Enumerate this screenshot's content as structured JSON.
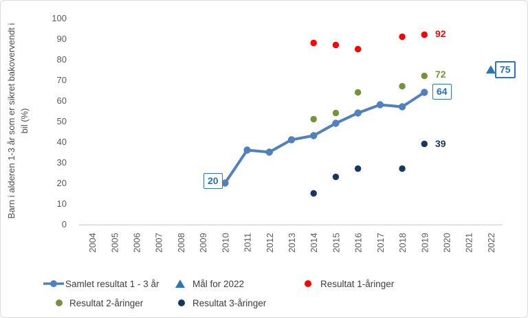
{
  "chart_data": {
    "type": "line",
    "title": "",
    "y_axis_title": "Barn i alderen 1-3 år som er sikret bakovervendt i bil (%)",
    "y_axis_title_lines": [
      "Barn i alderen 1-3 år som er sikret bakovervendt i",
      "bil (%)"
    ],
    "x_categories": [
      "2004",
      "2005",
      "2006",
      "2007",
      "2008",
      "2009",
      "2010",
      "2011",
      "2012",
      "2013",
      "2014",
      "2015",
      "2016",
      "2017",
      "2018",
      "2019",
      "2020",
      "2021",
      "2022"
    ],
    "y_ticks": [
      0,
      10,
      20,
      30,
      40,
      50,
      60,
      70,
      80,
      90,
      100
    ],
    "ylim": [
      0,
      100
    ],
    "grid": false,
    "legend_position": "bottom",
    "series": [
      {
        "name": "Samlet resultat 1 - 3 år",
        "type": "line",
        "color": "#4F81BD",
        "points": [
          [
            "2010",
            20
          ],
          [
            "2011",
            36
          ],
          [
            "2012",
            35
          ],
          [
            "2013",
            41
          ],
          [
            "2014",
            43
          ],
          [
            "2015",
            49
          ],
          [
            "2016",
            54
          ],
          [
            "2017",
            58
          ],
          [
            "2018",
            57
          ],
          [
            "2019",
            64
          ]
        ]
      },
      {
        "name": "Mål for 2022",
        "type": "triangle",
        "color": "#2E75B6",
        "points": [
          [
            "2022",
            75
          ]
        ]
      },
      {
        "name": "Resultat 1-åringer",
        "type": "dot",
        "color": "#FF0000",
        "points": [
          [
            "2014",
            88
          ],
          [
            "2015",
            87
          ],
          [
            "2016",
            85
          ],
          [
            "2018",
            91
          ],
          [
            "2019",
            92
          ]
        ]
      },
      {
        "name": "Resultat 2-åringer",
        "type": "dot",
        "color": "#76923C",
        "points": [
          [
            "2014",
            51
          ],
          [
            "2015",
            54
          ],
          [
            "2016",
            64
          ],
          [
            "2018",
            67
          ],
          [
            "2019",
            72
          ]
        ]
      },
      {
        "name": "Resultat 3-åringer",
        "type": "dot",
        "color": "#17375E",
        "points": [
          [
            "2014",
            15
          ],
          [
            "2015",
            23
          ],
          [
            "2016",
            27
          ],
          [
            "2018",
            27
          ],
          [
            "2019",
            39
          ]
        ]
      }
    ],
    "annotations": [
      {
        "text": "20",
        "value": 20,
        "boxed": true,
        "color": "#2272B9"
      },
      {
        "text": "64",
        "value": 64,
        "boxed": true,
        "color": "#2272B9"
      },
      {
        "text": "75",
        "value": 75,
        "boxed": true,
        "color": "#2272B9"
      },
      {
        "text": "92",
        "value": 92,
        "boxed": false,
        "color": "#FF0000"
      },
      {
        "text": "72",
        "value": 72,
        "boxed": false,
        "color": "#76923C"
      },
      {
        "text": "39",
        "value": 39,
        "boxed": false,
        "color": "#17375E"
      }
    ],
    "colors": {
      "axis_text": "#595959",
      "axis_line": "#C9C9C9",
      "accent_blue": "#2E75B6"
    }
  },
  "legend": {
    "items": [
      {
        "label": "Samlet resultat 1 - 3 år",
        "marker": "line-circle",
        "color": "#4F81BD"
      },
      {
        "label": "Mål for 2022",
        "marker": "triangle",
        "color": "#2E75B6"
      },
      {
        "label": "Resultat 1-åringer",
        "marker": "circle",
        "color": "#FF0000"
      },
      {
        "label": "Resultat 2-åringer",
        "marker": "circle",
        "color": "#76923C"
      },
      {
        "label": "Resultat 3-åringer",
        "marker": "circle",
        "color": "#17375E"
      }
    ]
  }
}
